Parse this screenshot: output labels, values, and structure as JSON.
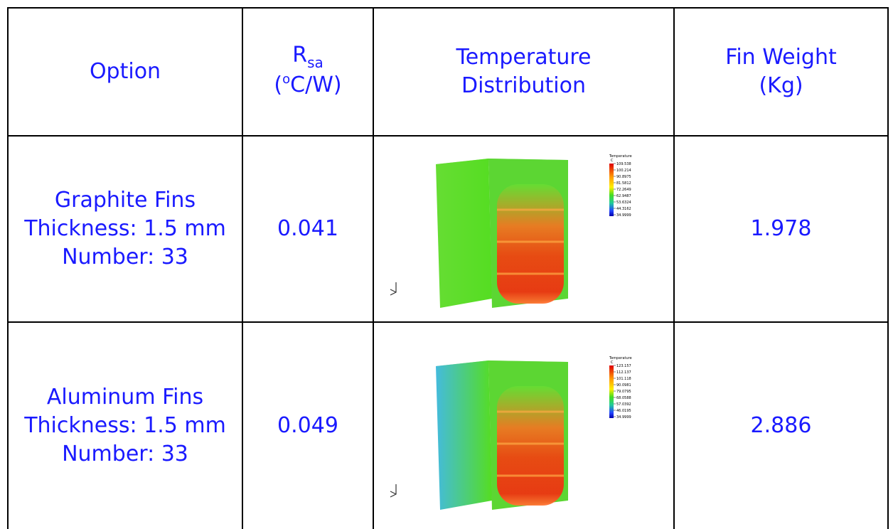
{
  "header": {
    "option": "Option",
    "rsa_main": "R",
    "rsa_sub": "sa",
    "rsa_unit_open": "(",
    "rsa_unit_sup": "o",
    "rsa_unit_rest": "C/W)",
    "temp_line1": "Temperature",
    "temp_line2": "Distribution",
    "weight_line1": "Fin Weight",
    "weight_line2": "(Kg)"
  },
  "rows": [
    {
      "option_line1": "Graphite Fins",
      "option_line2": "Thickness: 1.5 mm",
      "option_line3": "Number: 33",
      "rsa": "0.041",
      "weight": "1.978",
      "legend_title": "Temperature",
      "legend_unit": "C",
      "legend_values": [
        "109.538",
        "100.214",
        "90.8975",
        "81.5812",
        "72.2649",
        "62.9487",
        "53.6324",
        "44.3162",
        "34.9999"
      ]
    },
    {
      "option_line1": "Aluminum Fins",
      "option_line2": "Thickness: 1.5 mm",
      "option_line3": "Number: 33",
      "rsa": "0.049",
      "weight": "2.886",
      "legend_title": "Temperature",
      "legend_unit": "C",
      "legend_values": [
        "123.157",
        "112.137",
        "101.118",
        "90.0981",
        "79.0795",
        "68.0588",
        "57.0392",
        "46.0195",
        "34.9999"
      ]
    }
  ],
  "colors": {
    "text": "#1a1aff",
    "border": "#000000"
  }
}
